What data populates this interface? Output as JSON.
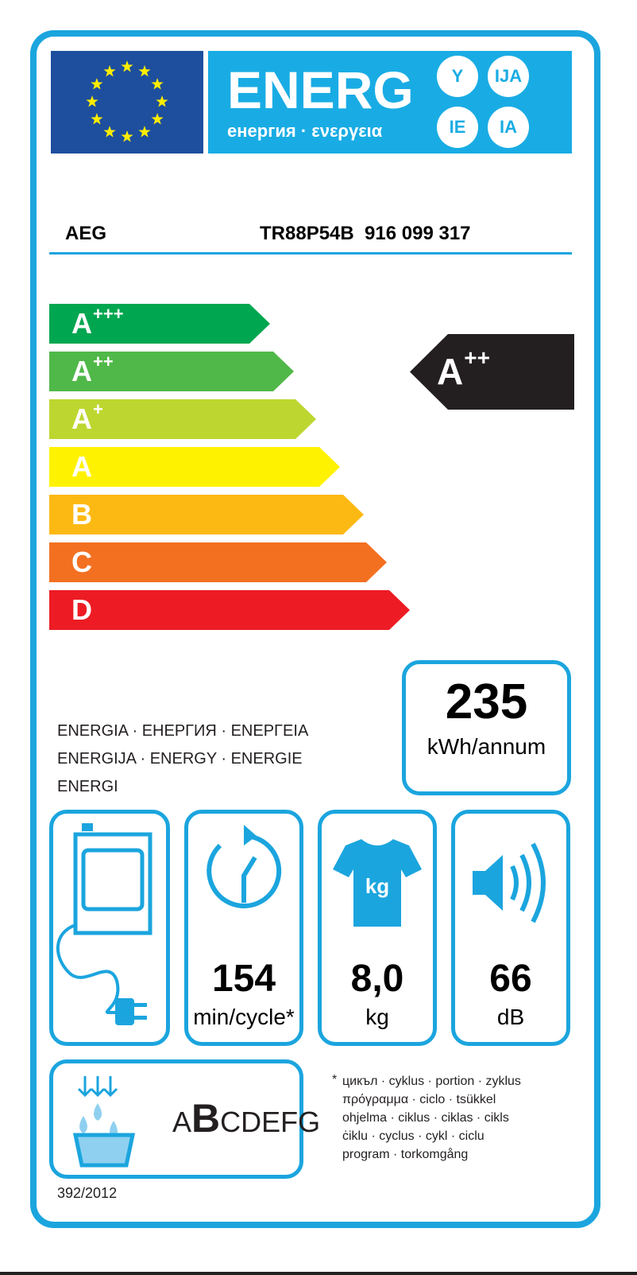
{
  "header": {
    "title": "ENERG",
    "subtitle": "енергия · ενεργεια",
    "suffixes": [
      "Y",
      "IJA",
      "IE",
      "IA"
    ],
    "flag_colors": {
      "blue": "#1d4f9e",
      "star": "#ffed00"
    },
    "banner_color": "#19ace4"
  },
  "supplier": "AEG",
  "model": "TR88P54B  916 099 317",
  "scale": [
    {
      "label": "A",
      "sup": "+++",
      "color": "#00a650"
    },
    {
      "label": "A",
      "sup": "++",
      "color": "#50b848"
    },
    {
      "label": "A",
      "sup": "+",
      "color": "#bed630"
    },
    {
      "label": "A",
      "sup": "",
      "color": "#fff200"
    },
    {
      "label": "B",
      "sup": "",
      "color": "#fdb913"
    },
    {
      "label": "C",
      "sup": "",
      "color": "#f37021"
    },
    {
      "label": "D",
      "sup": "",
      "color": "#ed1c24"
    }
  ],
  "rating": {
    "label": "A",
    "sup": "++",
    "color": "#231f20"
  },
  "energy_words": [
    "ENERGIA · ЕНЕРГИЯ · ΕΝΕΡΓΕΙΑ",
    "ENERGIJA · ENERGY · ENERGIE",
    "ENERGI"
  ],
  "consumption": {
    "value": "235",
    "unit": "kWh/annum"
  },
  "specs": [
    {
      "icon": "clock-icon",
      "value": "154",
      "unit": "min/cycle*"
    },
    {
      "icon": "tshirt-kg-icon",
      "value": "8,0",
      "unit": "kg",
      "icon_text": "kg"
    },
    {
      "icon": "speaker-icon",
      "value": "66",
      "unit": "dB"
    }
  ],
  "condensation": {
    "classes_prefix": "A",
    "selected": "B",
    "classes_suffix": "CDEFG"
  },
  "footnote": [
    "*",
    "цикъл · cyklus · portion · zyklus",
    "πρόγραμμα · ciclo · tsükkel",
    "ohjelma · ciklus · ciklas · cikls",
    "ċiklu · cyclus · cykl · ciclu",
    "program · torkomgång"
  ],
  "regulation": "392/2012"
}
